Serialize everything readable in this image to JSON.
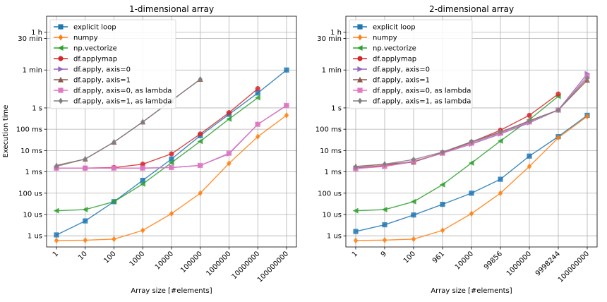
{
  "figure": {
    "ylabel": "Execution time",
    "xlabel": "Array size [#elements]"
  },
  "chart_data": [
    {
      "type": "line",
      "title": "1-dimensional array",
      "xlabel": "Array size [#elements]",
      "ylabel": "Execution time",
      "x_scale": "categorical",
      "y_scale": "log",
      "grid": true,
      "legend": "top-left",
      "categories": [
        "1",
        "10",
        "100",
        "1000",
        "10000",
        "100000",
        "1000000",
        "10000000",
        "100000000"
      ],
      "yticks": [
        {
          "label": "1 us",
          "seconds": 1e-06
        },
        {
          "label": "10 us",
          "seconds": 1e-05
        },
        {
          "label": "100 us",
          "seconds": 0.0001
        },
        {
          "label": "1 ms",
          "seconds": 0.001
        },
        {
          "label": "10 ms",
          "seconds": 0.01
        },
        {
          "label": "100 ms",
          "seconds": 0.1
        },
        {
          "label": "1 s",
          "seconds": 1
        },
        {
          "label": "1 min",
          "seconds": 60
        },
        {
          "label": "30 min",
          "seconds": 1800
        },
        {
          "label": "1 h",
          "seconds": 3600
        }
      ],
      "ylim": [
        3e-07,
        20000
      ],
      "series": [
        {
          "name": "explicit loop",
          "color": "#1f77b4",
          "marker": "square",
          "values": [
            1.1e-06,
            5e-06,
            4e-05,
            0.0004,
            0.004,
            0.05,
            0.5,
            5,
            60
          ]
        },
        {
          "name": "numpy",
          "color": "#ff7f0e",
          "marker": "diamond",
          "values": [
            6e-07,
            6.2e-07,
            7e-07,
            1.8e-06,
            1.1e-05,
            0.0001,
            0.0025,
            0.045,
            0.45
          ]
        },
        {
          "name": "np.vectorize",
          "color": "#2ca02c",
          "marker": "triangle-left",
          "values": [
            1.5e-05,
            1.7e-05,
            4e-05,
            0.00027,
            0.0027,
            0.027,
            0.3,
            3,
            null
          ]
        },
        {
          "name": "df.applymap",
          "color": "#d62728",
          "marker": "circle",
          "values": [
            0.0015,
            0.0015,
            0.0016,
            0.0023,
            0.007,
            0.06,
            0.6,
            8,
            null
          ]
        },
        {
          "name": "df.apply, axis=0",
          "color": "#9467bd",
          "marker": "triangle-right",
          "values": [
            0.0015,
            0.0015,
            0.0015,
            0.0015,
            0.0016,
            0.002,
            0.007,
            0.17,
            1.3
          ]
        },
        {
          "name": "df.apply, axis=1",
          "color": "#8c564b",
          "marker": "triangle-up",
          "values": [
            0.002,
            0.004,
            0.025,
            0.22,
            2.2,
            22,
            null,
            null,
            null
          ]
        },
        {
          "name": "df.apply, axis=0, as lambda",
          "color": "#e377c2",
          "marker": "square",
          "values": [
            0.0015,
            0.0015,
            0.0015,
            0.0015,
            0.0016,
            0.002,
            0.0075,
            0.17,
            1.3
          ]
        },
        {
          "name": "df.apply, axis=1, as lambda",
          "color": "#7f7f7f",
          "marker": "diamond",
          "values": [
            0.0018,
            0.004,
            0.025,
            0.22,
            2.2,
            22,
            null,
            null,
            null
          ]
        }
      ]
    },
    {
      "type": "line",
      "title": "2-dimensional array",
      "xlabel": "Array size [#elements]",
      "x_scale": "categorical",
      "y_scale": "log",
      "grid": true,
      "legend": "top-left",
      "categories": [
        "1",
        "9",
        "100",
        "961",
        "10000",
        "99856",
        "1000000",
        "9998244",
        "100000000"
      ],
      "yticks": [
        {
          "label": "1 us",
          "seconds": 1e-06
        },
        {
          "label": "10 us",
          "seconds": 1e-05
        },
        {
          "label": "100 us",
          "seconds": 0.0001
        },
        {
          "label": "1 ms",
          "seconds": 0.001
        },
        {
          "label": "10 ms",
          "seconds": 0.01
        },
        {
          "label": "100 ms",
          "seconds": 0.1
        },
        {
          "label": "1 s",
          "seconds": 1
        },
        {
          "label": "1 min",
          "seconds": 60
        },
        {
          "label": "30 min",
          "seconds": 1800
        },
        {
          "label": "1 h",
          "seconds": 3600
        }
      ],
      "ylim": [
        3e-07,
        20000
      ],
      "series": [
        {
          "name": "explicit loop",
          "color": "#1f77b4",
          "marker": "square",
          "values": [
            1.6e-06,
            3.3e-06,
            9.5e-06,
            3e-05,
            0.0001,
            0.00045,
            0.0055,
            0.045,
            0.45
          ]
        },
        {
          "name": "numpy",
          "color": "#ff7f0e",
          "marker": "diamond",
          "values": [
            6e-07,
            6.3e-07,
            7e-07,
            1.8e-06,
            1.1e-05,
            0.0001,
            0.0018,
            0.04,
            0.4
          ]
        },
        {
          "name": "np.vectorize",
          "color": "#2ca02c",
          "marker": "triangle-left",
          "values": [
            1.5e-05,
            1.7e-05,
            4e-05,
            0.00025,
            0.0026,
            0.028,
            0.28,
            3.5,
            null
          ]
        },
        {
          "name": "df.applymap",
          "color": "#d62728",
          "marker": "circle",
          "values": [
            0.0015,
            0.002,
            0.003,
            0.008,
            0.025,
            0.09,
            0.45,
            4.5,
            null
          ]
        },
        {
          "name": "df.apply, axis=0",
          "color": "#9467bd",
          "marker": "triangle-right",
          "values": [
            0.0015,
            0.0018,
            0.003,
            0.0075,
            0.02,
            0.06,
            0.2,
            0.8,
            40
          ]
        },
        {
          "name": "df.apply, axis=1",
          "color": "#8c564b",
          "marker": "triangle-up",
          "values": [
            0.0018,
            0.0023,
            0.0029,
            0.008,
            0.025,
            0.07,
            0.25,
            0.8,
            20
          ]
        },
        {
          "name": "df.apply, axis=0, as lambda",
          "color": "#e377c2",
          "marker": "square",
          "values": [
            0.0014,
            0.0018,
            0.0032,
            0.0075,
            0.022,
            0.065,
            0.22,
            0.8,
            30
          ]
        },
        {
          "name": "df.apply, axis=1, as lambda",
          "color": "#7f7f7f",
          "marker": "diamond",
          "values": [
            0.0017,
            0.0023,
            0.0038,
            0.0085,
            0.026,
            0.075,
            0.24,
            0.8,
            25
          ]
        }
      ]
    }
  ]
}
